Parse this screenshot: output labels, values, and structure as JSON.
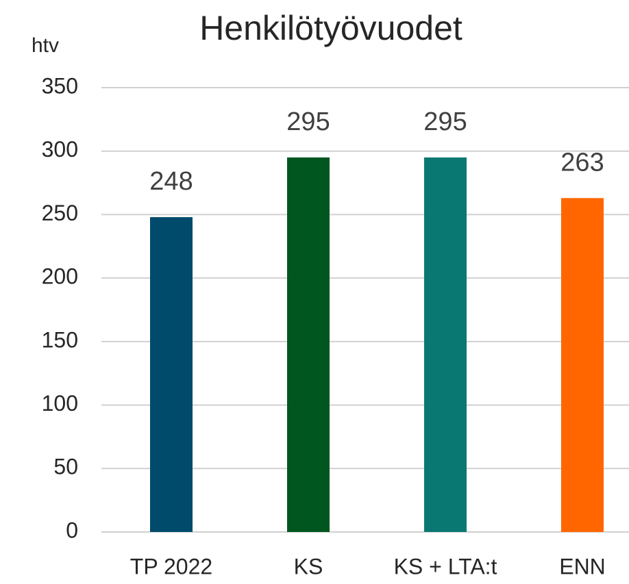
{
  "chart_data": {
    "type": "bar",
    "title": "Henkilötyövuodet",
    "y_label": "htv",
    "categories": [
      "TP 2022",
      "KS",
      "KS + LTA:t",
      "ENN"
    ],
    "values": [
      248,
      295,
      295,
      263
    ],
    "colors": [
      "#004b6b",
      "#00561f",
      "#0a7872",
      "#ff6600"
    ],
    "ylim": [
      0,
      350
    ],
    "yticks": [
      0,
      50,
      100,
      150,
      200,
      250,
      300,
      350
    ],
    "grid": true
  }
}
